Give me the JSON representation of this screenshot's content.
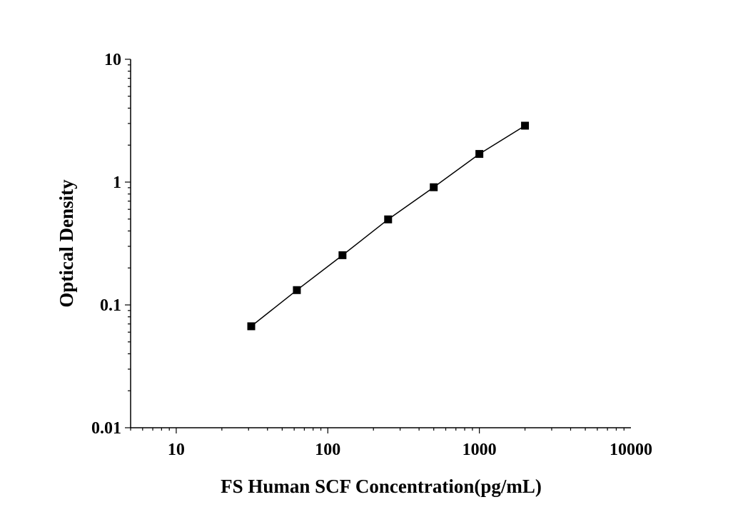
{
  "chart_data": {
    "type": "line",
    "title": "",
    "xlabel": "FS Human SCF Concentration(pg/mL)",
    "ylabel": "Optical Density",
    "x_scale": "log",
    "y_scale": "log",
    "xlim": [
      5,
      10000
    ],
    "ylim": [
      0.01,
      10
    ],
    "x_ticks": [
      10,
      100,
      1000,
      10000
    ],
    "x_tick_labels": [
      "10",
      "100",
      "1000",
      "10000"
    ],
    "y_ticks": [
      0.01,
      0.1,
      1,
      10
    ],
    "y_tick_labels": [
      "0.01",
      "0.1",
      "1",
      "10"
    ],
    "grid": false,
    "legend": "none",
    "marker": "square",
    "line_color": "#000000",
    "series": [
      {
        "x": [
          31.25,
          62.5,
          125,
          250,
          500,
          1000,
          2000
        ],
        "y": [
          0.067,
          0.132,
          0.254,
          0.497,
          0.908,
          1.695,
          2.88
        ]
      }
    ]
  }
}
